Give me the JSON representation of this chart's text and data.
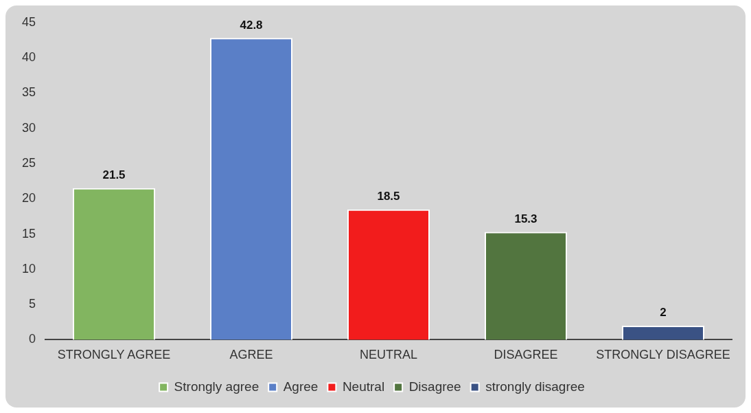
{
  "chart_data": {
    "type": "bar",
    "categories": [
      "STRONGLY AGREE",
      "AGREE",
      "NEUTRAL",
      "DISAGREE",
      "STRONGLY DISAGREE"
    ],
    "series": [
      {
        "name": "Strongly agree",
        "color": "#82b560",
        "values": [
          21.5,
          null,
          null,
          null,
          null
        ]
      },
      {
        "name": "Agree",
        "color": "#5a7fc7",
        "values": [
          null,
          42.8,
          null,
          null,
          null
        ]
      },
      {
        "name": "Neutral",
        "color": "#f21c1c",
        "values": [
          null,
          null,
          18.5,
          null,
          null
        ]
      },
      {
        "name": "Disagree",
        "color": "#52753f",
        "values": [
          null,
          null,
          null,
          15.3,
          null
        ]
      },
      {
        "name": "strongly disagree",
        "color": "#3a5284",
        "values": [
          null,
          null,
          null,
          null,
          2
        ]
      }
    ],
    "ylim": [
      0,
      45
    ],
    "yticks": [
      0,
      5,
      10,
      15,
      20,
      25,
      30,
      35,
      40,
      45
    ],
    "grid": false,
    "legend": "bottom",
    "data_labels": true
  }
}
